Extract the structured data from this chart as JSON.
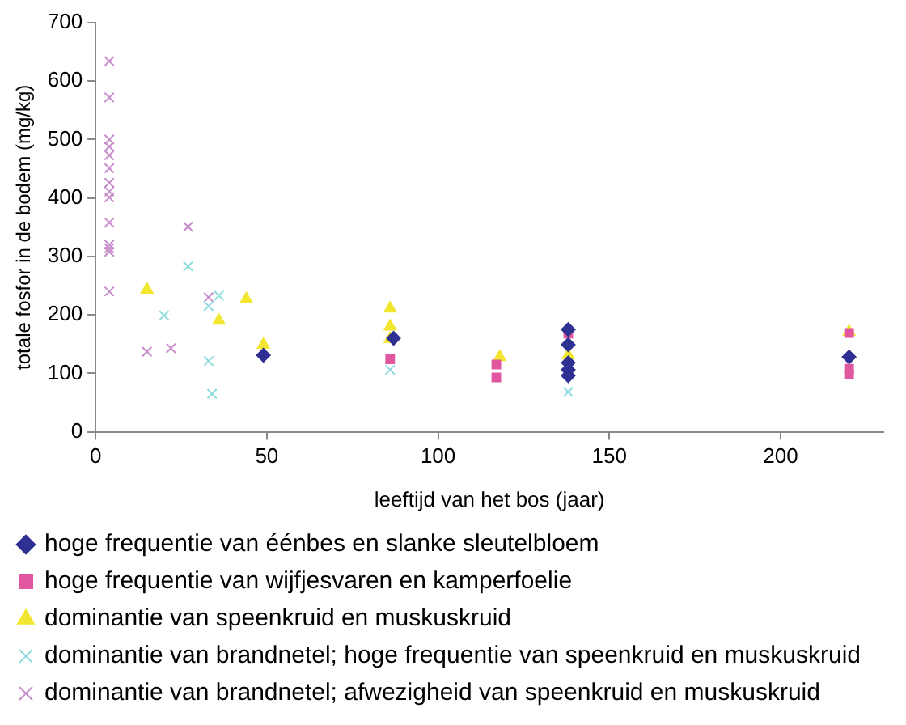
{
  "chart_data": {
    "type": "scatter",
    "xlabel": "leeftijd van het bos (jaar)",
    "ylabel": "totale fosfor in de bodem (mg/kg)",
    "xlim": [
      0,
      230
    ],
    "xticks": [
      0,
      50,
      100,
      150,
      200
    ],
    "ylim": [
      0,
      700
    ],
    "yticks": [
      0,
      100,
      200,
      300,
      400,
      500,
      600,
      700
    ],
    "grid": false,
    "legend": "bottom",
    "series": [
      {
        "name": "hoge frequentie van éénbes en slanke sleutelbloem",
        "color": "#2e3192",
        "marker": "diamond",
        "x": [
          49,
          87,
          138,
          138,
          138,
          138,
          138,
          220
        ],
        "values": [
          131,
          160,
          175,
          149,
          118,
          106,
          96,
          128
        ]
      },
      {
        "name": "hoge frequentie van wijfjesvaren en kamperfoelie",
        "color": "#e0579f",
        "marker": "square",
        "x": [
          86,
          117,
          117,
          138,
          220,
          220,
          220
        ],
        "values": [
          124,
          115,
          93,
          168,
          169,
          108,
          98
        ]
      },
      {
        "name": "dominantie van speenkruid en muskuskruid",
        "color": "#f2e631",
        "marker": "triangle",
        "x": [
          15,
          36,
          44,
          49,
          86,
          86,
          86,
          118,
          138,
          220
        ],
        "values": [
          243,
          190,
          227,
          149,
          211,
          180,
          159,
          128,
          131,
          171
        ]
      },
      {
        "name": "dominantie van brandnetel; hoge frequentie van speenkruid en muskuskruid",
        "color": "#8fdcdc",
        "marker": "cross",
        "x": [
          20,
          27,
          33,
          33,
          34,
          36,
          86,
          138
        ],
        "values": [
          199,
          283,
          215,
          121,
          65,
          233,
          106,
          68
        ]
      },
      {
        "name": "dominantie van brandnetel; afwezigheid van speenkruid en muskuskruid",
        "color": "#c78ccb",
        "marker": "cross",
        "x": [
          4,
          4,
          4,
          4,
          4,
          4,
          4,
          4,
          4,
          4,
          4,
          4,
          4,
          4,
          15,
          22,
          27,
          33
        ],
        "values": [
          634,
          572,
          500,
          488,
          473,
          451,
          426,
          411,
          401,
          358,
          320,
          314,
          308,
          240,
          137,
          143,
          351,
          230
        ]
      }
    ]
  }
}
